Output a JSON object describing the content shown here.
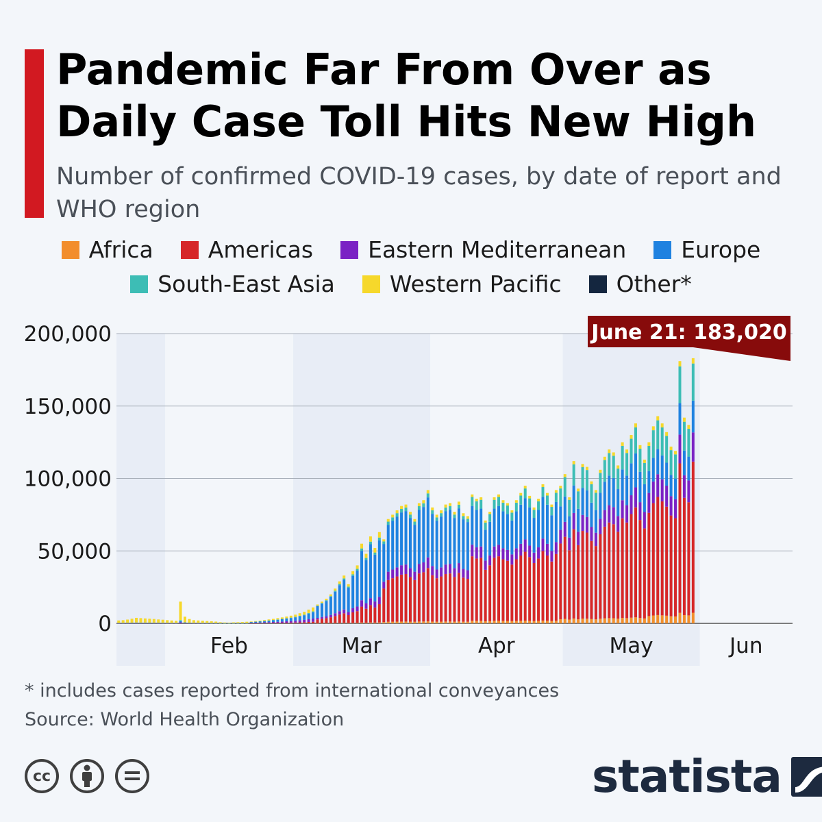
{
  "header": {
    "title": "Pandemic Far From Over as Daily Case Toll Hits New High",
    "subtitle": "Number of confirmed COVID-19 cases, by date of report and WHO region"
  },
  "legend": [
    {
      "label": "Africa",
      "color": "#f28e2b"
    },
    {
      "label": "Americas",
      "color": "#d62728"
    },
    {
      "label": "Eastern Mediterranean",
      "color": "#7b22c4"
    },
    {
      "label": "Europe",
      "color": "#1f82e0"
    },
    {
      "label": "South-East Asia",
      "color": "#3dbdb5"
    },
    {
      "label": "Western Pacific",
      "color": "#f6d82b"
    },
    {
      "label": "Other*",
      "color": "#14263f"
    }
  ],
  "annotation": {
    "label": "June 21: 183,020",
    "color": "#870b0b"
  },
  "footnote": "* includes cases reported from international conveyances",
  "source": "Source: World Health Organization",
  "brand": {
    "name": "statista",
    "license_icons": [
      "cc-icon",
      "attribution-icon",
      "no-derivatives-icon"
    ]
  },
  "chart_data": {
    "type": "bar",
    "stacked": true,
    "x_start": "2020-01-21",
    "x_end": "2020-06-21",
    "month_labels": [
      "Feb",
      "Mar",
      "Apr",
      "May",
      "Jun"
    ],
    "y_ticks": [
      "0",
      "50,000",
      "100,000",
      "150,000",
      "200,000"
    ],
    "ylim": [
      0,
      200000
    ],
    "grid": true,
    "legend_position": "top",
    "series_order": [
      "Africa",
      "Americas",
      "Eastern Mediterranean",
      "Europe",
      "South-East Asia",
      "Western Pacific",
      "Other*"
    ],
    "totals": [
      2000,
      2200,
      2600,
      3200,
      3800,
      3600,
      3400,
      3200,
      3000,
      2700,
      2500,
      2200,
      2000,
      1800,
      15000,
      4600,
      3000,
      2200,
      2000,
      1800,
      1600,
      1400,
      1200,
      800,
      600,
      500,
      700,
      800,
      900,
      1100,
      1300,
      1600,
      1900,
      2300,
      2700,
      3100,
      3600,
      4100,
      4700,
      5300,
      6000,
      7000,
      8000,
      9500,
      11000,
      13000,
      15000,
      17000,
      20000,
      24000,
      29000,
      33000,
      27000,
      36000,
      40000,
      55000,
      48000,
      60000,
      52000,
      63000,
      58000,
      72000,
      75000,
      78000,
      81000,
      82000,
      77000,
      72000,
      83000,
      85000,
      92000,
      80000,
      75000,
      78000,
      82000,
      83000,
      77000,
      84000,
      76000,
      74000,
      89000,
      86000,
      87000,
      71000,
      77000,
      87000,
      89000,
      85000,
      83000,
      78000,
      85000,
      90000,
      95000,
      88000,
      80000,
      86000,
      96000,
      90000,
      82000,
      92000,
      95000,
      103000,
      87000,
      112000,
      93000,
      110000,
      108000,
      98000,
      92000,
      106000,
      115000,
      120000,
      118000,
      109000,
      125000,
      120000,
      130000,
      138000,
      123000,
      113000,
      125000,
      136000,
      143000,
      138000,
      132000,
      122000,
      119000,
      181000,
      142000,
      137000,
      183020
    ],
    "y_total_max": 183020
  }
}
